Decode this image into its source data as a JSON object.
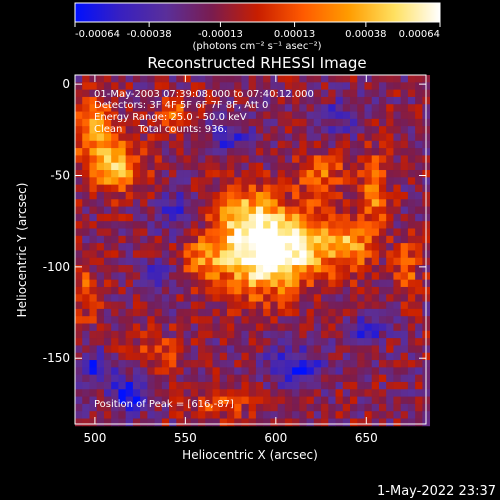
{
  "chart_data": {
    "type": "heatmap",
    "title": "Reconstructed RHESSI Image",
    "xlabel": "Heliocentric X (arcsec)",
    "ylabel": "Heliocentric Y (arcsec)",
    "xlim": [
      489,
      683
    ],
    "ylim": [
      -186,
      5
    ],
    "x_ticks": [
      500,
      550,
      600,
      650
    ],
    "y_ticks": [
      0,
      -50,
      -100,
      -150
    ],
    "colorbar": {
      "min": -0.00064,
      "max": 0.00064,
      "tick_values": [
        -0.00064,
        -0.00038,
        -0.00013,
        0.00013,
        0.00038,
        0.00064
      ],
      "tick_labels": [
        "-0.00064",
        "-0.00038",
        "-0.00013",
        "0.00013",
        "0.00038",
        "0.00064"
      ],
      "unit_label": "(photons cm⁻² s⁻¹ asec⁻²)",
      "stops": [
        "#0010ff",
        "#3820c0",
        "#5a2f9a",
        "#7a1c4f",
        "#c81e00",
        "#ff5a00",
        "#ff9c00",
        "#ffe060",
        "#ffffff"
      ]
    },
    "annotations": {
      "time": "01-May-2003 07:39:08.000 to 07:40:12.000",
      "detectors": "Detectors: 3F 4F 5F 6F 7F 8F, Att 0",
      "energy": "Energy Range: 25.0 - 50.0 keV",
      "clean": "Clean     Total counts: 936.",
      "peak": "Position of Peak = [616,-87]"
    },
    "sources": [
      {
        "x": 611,
        "y": -88,
        "amp": 0.00064,
        "sx": 18,
        "sy": 14
      },
      {
        "x": 590,
        "y": -95,
        "amp": 0.00055,
        "sx": 14,
        "sy": 16
      },
      {
        "x": 582,
        "y": -72,
        "amp": 0.00042,
        "sx": 12,
        "sy": 12
      },
      {
        "x": 562,
        "y": -95,
        "amp": 0.00036,
        "sx": 10,
        "sy": 9
      },
      {
        "x": 512,
        "y": -45,
        "amp": 0.0005,
        "sx": 11,
        "sy": 10
      },
      {
        "x": 498,
        "y": -25,
        "amp": 0.0004,
        "sx": 10,
        "sy": 12
      },
      {
        "x": 545,
        "y": -18,
        "amp": 0.0003,
        "sx": 8,
        "sy": 7
      },
      {
        "x": 625,
        "y": -48,
        "amp": 0.00032,
        "sx": 10,
        "sy": 8
      },
      {
        "x": 655,
        "y": -60,
        "amp": 0.0004,
        "sx": 5,
        "sy": 15
      },
      {
        "x": 642,
        "y": -88,
        "amp": 0.00038,
        "sx": 7,
        "sy": 9
      },
      {
        "x": 672,
        "y": -100,
        "amp": 0.00034,
        "sx": 5,
        "sy": 10
      },
      {
        "x": 535,
        "y": -148,
        "amp": 0.00022,
        "sx": 10,
        "sy": 8
      },
      {
        "x": 568,
        "y": -175,
        "amp": 0.00025,
        "sx": 12,
        "sy": 6
      },
      {
        "x": 495,
        "y": -115,
        "amp": 0.0003,
        "sx": 6,
        "sy": 10
      },
      {
        "x": 520,
        "y": -170,
        "amp": -0.00045,
        "sx": 8,
        "sy": 7
      },
      {
        "x": 500,
        "y": -155,
        "amp": -0.0004,
        "sx": 7,
        "sy": 6
      },
      {
        "x": 610,
        "y": -155,
        "amp": -0.00038,
        "sx": 12,
        "sy": 8
      },
      {
        "x": 650,
        "y": -135,
        "amp": -0.00036,
        "sx": 7,
        "sy": 6
      },
      {
        "x": 545,
        "y": -70,
        "amp": -0.0003,
        "sx": 8,
        "sy": 8
      },
      {
        "x": 575,
        "y": -30,
        "amp": -0.00028,
        "sx": 9,
        "sy": 7
      },
      {
        "x": 535,
        "y": -105,
        "amp": -0.00035,
        "sx": 6,
        "sy": 6
      },
      {
        "x": 635,
        "y": -18,
        "amp": -0.00025,
        "sx": 9,
        "sy": 7
      }
    ],
    "background": -0.00016
  },
  "footer": {
    "timestamp": "1-May-2022 23:37"
  }
}
